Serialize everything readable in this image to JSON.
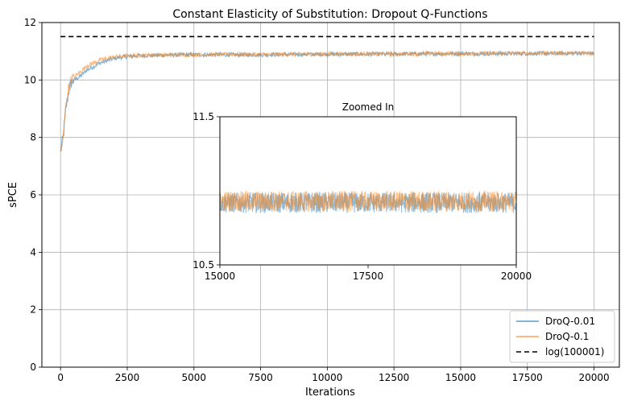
{
  "chart_data": [
    {
      "type": "line",
      "title": "Constant Elasticity of Substitution: Dropout Q-Functions",
      "xlabel": "Iterations",
      "ylabel": "sPCE",
      "xlim": [
        -700,
        20950
      ],
      "ylim": [
        0,
        12
      ],
      "xticks": [
        0,
        2500,
        5000,
        7500,
        10000,
        12500,
        15000,
        17500,
        20000
      ],
      "xtick_labels": [
        "0",
        "2500",
        "5000",
        "7500",
        "10000",
        "12500",
        "15000",
        "17500",
        "20000"
      ],
      "yticks": [
        0,
        2,
        4,
        6,
        8,
        10,
        12
      ],
      "ytick_labels": [
        "0",
        "2",
        "4",
        "6",
        "8",
        "10",
        "12"
      ],
      "grid": true,
      "legend_position": "lower-right",
      "series": [
        {
          "name": "DroQ-0.01",
          "color": "#1f77b4",
          "style": "solid",
          "x": [
            0,
            100,
            200,
            300,
            400,
            500,
            700,
            1000,
            1500,
            2000,
            2500,
            3000,
            4000,
            5000,
            7500,
            10000,
            12500,
            15000,
            17500,
            20000
          ],
          "y": [
            7.5,
            8.0,
            9.0,
            9.6,
            9.9,
            10.0,
            10.1,
            10.35,
            10.6,
            10.75,
            10.82,
            10.85,
            10.87,
            10.88,
            10.88,
            10.9,
            10.9,
            10.92,
            10.92,
            10.93
          ],
          "noise": 0.07
        },
        {
          "name": "DroQ-0.1",
          "color": "#ff7f0e",
          "style": "solid",
          "x": [
            0,
            100,
            200,
            300,
            400,
            500,
            700,
            1000,
            1500,
            2000,
            2500,
            3000,
            4000,
            5000,
            7500,
            10000,
            12500,
            15000,
            17500,
            20000
          ],
          "y": [
            7.4,
            8.0,
            9.1,
            9.7,
            10.0,
            10.1,
            10.25,
            10.5,
            10.7,
            10.8,
            10.84,
            10.86,
            10.87,
            10.88,
            10.89,
            10.9,
            10.91,
            10.92,
            10.93,
            10.94
          ],
          "noise": 0.07
        },
        {
          "name": "log(100001)",
          "color": "#000000",
          "style": "dashed",
          "x": [
            0,
            20000
          ],
          "y": [
            11.51,
            11.51
          ]
        }
      ]
    },
    {
      "type": "line",
      "title": "Zoomed In",
      "xlim": [
        15000,
        20000
      ],
      "ylim": [
        10.5,
        11.5
      ],
      "xticks": [
        15000,
        17500,
        20000
      ],
      "xtick_labels": [
        "15000",
        "17500",
        "20000"
      ],
      "yticks": [
        10.5,
        11.5
      ],
      "ytick_labels": [
        "10.5",
        "11.5"
      ],
      "grid": false,
      "series": [
        {
          "name": "DroQ-0.01",
          "color": "#1f77b4",
          "mean": 10.92,
          "noise": 0.07
        },
        {
          "name": "DroQ-0.1",
          "color": "#ff7f0e",
          "mean": 10.93,
          "noise": 0.07
        }
      ]
    }
  ]
}
